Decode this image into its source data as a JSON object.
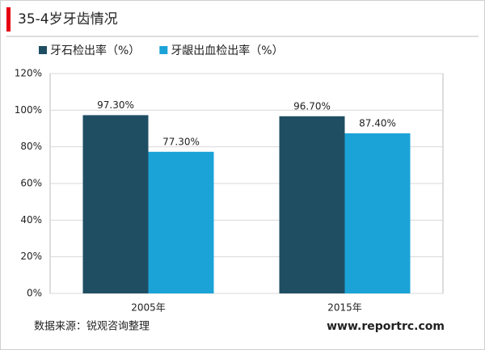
{
  "chart_data": {
    "type": "bar",
    "title": "35-4岁牙齿情况",
    "categories": [
      "2005年",
      "2015年"
    ],
    "series": [
      {
        "name": "牙石检出率（%）",
        "color": "#1f4e63",
        "values": [
          97.3,
          96.7
        ],
        "value_labels": [
          "97.30%",
          "96.70%"
        ]
      },
      {
        "name": "牙龈出血检出率（%）",
        "color": "#1ba3d8",
        "values": [
          77.3,
          87.4
        ],
        "value_labels": [
          "77.30%",
          "87.40%"
        ]
      }
    ],
    "ylim": [
      0,
      120
    ],
    "yticks": [
      {
        "value": 0,
        "label": "0%"
      },
      {
        "value": 20,
        "label": "20%"
      },
      {
        "value": 40,
        "label": "40%"
      },
      {
        "value": 60,
        "label": "60%"
      },
      {
        "value": 80,
        "label": "80%"
      },
      {
        "value": 100,
        "label": "100%"
      },
      {
        "value": 120,
        "label": "120%"
      }
    ],
    "grid": true,
    "legend": "top",
    "source": "数据来源：锐观咨询整理",
    "website": "www.reportrc.com"
  }
}
